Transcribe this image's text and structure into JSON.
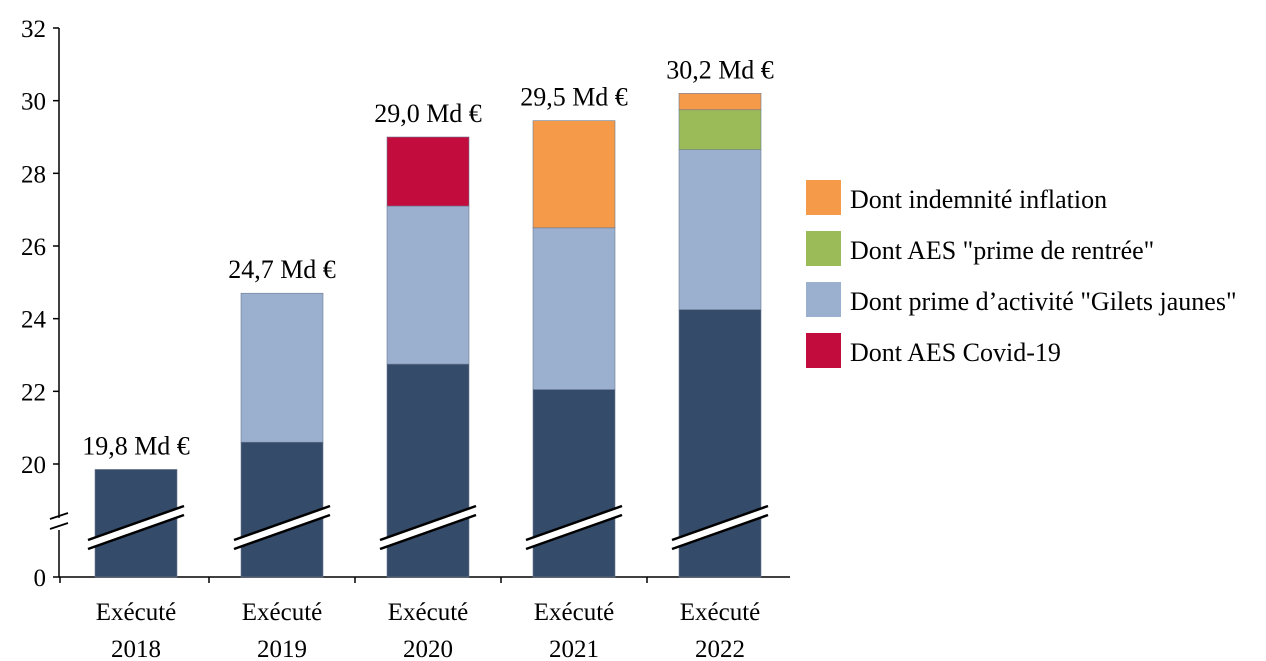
{
  "chart_data": {
    "type": "bar",
    "stacked": true,
    "axis_break": true,
    "categories": [
      [
        "Exécuté",
        "2018"
      ],
      [
        "Exécuté",
        "2019"
      ],
      [
        "Exécuté",
        "2020"
      ],
      [
        "Exécuté",
        "2021"
      ],
      [
        "Exécuté",
        "2022"
      ]
    ],
    "totals": [
      "19,8 Md €",
      "24,7 Md €",
      "29,0 Md €",
      "29,5 Md €",
      "30,2 Md €"
    ],
    "y_ticks": [
      20,
      22,
      24,
      26,
      28,
      30,
      32
    ],
    "y_zero_label": "0",
    "ylim": [
      19,
      32
    ],
    "series": [
      {
        "name": "",
        "color": "#354b6a",
        "values": [
          19.85,
          20.6,
          22.75,
          22.05,
          24.25
        ]
      },
      {
        "name": "Dont AES Covid-19",
        "color": "#c30c3e",
        "values": [
          0,
          0,
          0,
          0,
          0
        ]
      },
      {
        "name": "Dont prime d’activité \"Gilets jaunes\"",
        "color": "#9bb0cf",
        "values": [
          0,
          4.1,
          4.35,
          4.45,
          4.4
        ]
      },
      {
        "name": "Dont AES Covid-19",
        "color": "#c30c3e",
        "values": [
          0,
          0,
          1.9,
          0,
          0
        ]
      },
      {
        "name": "Dont indemnité inflation",
        "color": "#f59a48",
        "values": [
          0,
          0,
          0,
          2.95,
          0
        ]
      },
      {
        "name": "Dont AES \"prime de rentrée\"",
        "color": "#9bbb59",
        "values": [
          0,
          0,
          0,
          0,
          1.1
        ]
      },
      {
        "name": "Dont indemnité inflation",
        "color": "#f59a48",
        "values": [
          0,
          0,
          0,
          0,
          0.45
        ]
      }
    ],
    "legend": [
      {
        "label": "Dont indemnité inflation",
        "color": "#f59a48"
      },
      {
        "label": "Dont AES \"prime de rentrée\"",
        "color": "#9bbb59"
      },
      {
        "label": "Dont prime d’activité \"Gilets jaunes\"",
        "color": "#9bb0cf"
      },
      {
        "label": "Dont AES Covid-19",
        "color": "#c30c3e"
      }
    ],
    "legend_position": "right"
  }
}
